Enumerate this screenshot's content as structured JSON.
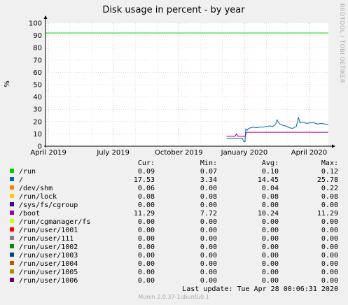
{
  "chart_data": {
    "type": "line",
    "title": "Disk usage in percent - by year",
    "ylabel": "%",
    "ylim": [
      0,
      100
    ],
    "yticks": [
      0,
      10,
      20,
      30,
      40,
      50,
      60,
      70,
      80,
      90,
      100
    ],
    "x_range": [
      "2019-03-28",
      "2020-04-28"
    ],
    "x_ticks": [
      {
        "date": "2019-04-01",
        "label": "April 2019"
      },
      {
        "date": "2019-07-01",
        "label": "July 2019"
      },
      {
        "date": "2019-10-01",
        "label": "October 2019"
      },
      {
        "date": "2020-01-01",
        "label": "January 2020"
      },
      {
        "date": "2020-04-01",
        "label": "April 2020"
      }
    ],
    "grid": true,
    "warning_line": {
      "y": 92,
      "color": "#00cc00"
    },
    "series": [
      {
        "name": "/run",
        "color": "#00cc00",
        "points": []
      },
      {
        "name": "/",
        "color": "#0066b3",
        "points": [
          [
            "2019-12-07",
            6.5
          ],
          [
            "2019-12-20",
            6.5
          ],
          [
            "2019-12-29",
            6.5
          ],
          [
            "2019-12-31",
            4
          ],
          [
            "2020-01-02",
            3.5
          ],
          [
            "2020-01-03",
            14
          ],
          [
            "2020-01-05",
            13
          ],
          [
            "2020-01-07",
            14.5
          ],
          [
            "2020-01-10",
            15
          ],
          [
            "2020-01-14",
            15.5
          ],
          [
            "2020-01-18",
            15
          ],
          [
            "2020-01-22",
            15.5
          ],
          [
            "2020-01-27",
            15.5
          ],
          [
            "2020-02-01",
            16
          ],
          [
            "2020-02-06",
            16.5
          ],
          [
            "2020-02-10",
            16
          ],
          [
            "2020-02-14",
            18
          ],
          [
            "2020-02-16",
            21.5
          ],
          [
            "2020-02-18",
            19
          ],
          [
            "2020-02-20",
            18
          ],
          [
            "2020-02-24",
            17
          ],
          [
            "2020-02-28",
            16.5
          ],
          [
            "2020-03-04",
            15
          ],
          [
            "2020-03-09",
            14.5
          ],
          [
            "2020-03-12",
            15.5
          ],
          [
            "2020-03-14",
            16
          ],
          [
            "2020-03-17",
            23.5
          ],
          [
            "2020-03-19",
            19
          ],
          [
            "2020-03-23",
            19.5
          ],
          [
            "2020-03-28",
            18.5
          ],
          [
            "2020-04-03",
            19
          ],
          [
            "2020-04-08",
            19
          ],
          [
            "2020-04-13",
            18
          ],
          [
            "2020-04-18",
            18.5
          ],
          [
            "2020-04-23",
            18
          ],
          [
            "2020-04-28",
            17.5
          ]
        ]
      },
      {
        "name": "/dev/shm",
        "color": "#ff8000",
        "points": []
      },
      {
        "name": "/run/lock",
        "color": "#ffcc00",
        "points": []
      },
      {
        "name": "/sys/fs/cgroup",
        "color": "#330099",
        "points": []
      },
      {
        "name": "/boot",
        "color": "#990099",
        "points": [
          [
            "2019-12-07",
            8
          ],
          [
            "2019-12-19",
            8
          ],
          [
            "2019-12-21",
            10
          ],
          [
            "2019-12-23",
            8
          ],
          [
            "2020-01-02",
            8
          ],
          [
            "2020-01-04",
            11.3
          ],
          [
            "2020-04-28",
            11.3
          ]
        ]
      },
      {
        "name": "/run/cgmanager/fs",
        "color": "#ccff00",
        "points": []
      },
      {
        "name": "/run/user/1001",
        "color": "#ff0000",
        "points": []
      },
      {
        "name": "/run/user/111",
        "color": "#808080",
        "points": []
      },
      {
        "name": "/run/user/1002",
        "color": "#008f00",
        "points": []
      },
      {
        "name": "/run/user/1003",
        "color": "#00487d",
        "points": []
      },
      {
        "name": "/run/user/1004",
        "color": "#b35a00",
        "points": []
      },
      {
        "name": "/run/user/1005",
        "color": "#b38f00",
        "points": []
      },
      {
        "name": "/run/user/1006",
        "color": "#6b006b",
        "points": []
      }
    ]
  },
  "legend": {
    "headers": {
      "cur": "Cur:",
      "min": "Min:",
      "avg": "Avg:",
      "max": "Max:"
    },
    "rows": [
      {
        "name": "/run",
        "color": "#00cc00",
        "cur": "0.09",
        "min": "0.07",
        "avg": "0.10",
        "max": "0.12"
      },
      {
        "name": "/",
        "color": "#0066b3",
        "cur": "17.53",
        "min": "3.34",
        "avg": "14.45",
        "max": "25.78"
      },
      {
        "name": "/dev/shm",
        "color": "#ff8000",
        "cur": "0.06",
        "min": "0.00",
        "avg": "0.04",
        "max": "0.22"
      },
      {
        "name": "/run/lock",
        "color": "#ffcc00",
        "cur": "0.08",
        "min": "0.08",
        "avg": "0.08",
        "max": "0.08"
      },
      {
        "name": "/sys/fs/cgroup",
        "color": "#330099",
        "cur": "0.00",
        "min": "0.00",
        "avg": "0.00",
        "max": "0.00"
      },
      {
        "name": "/boot",
        "color": "#990099",
        "cur": "11.29",
        "min": "7.72",
        "avg": "10.24",
        "max": "11.29"
      },
      {
        "name": "/run/cgmanager/fs",
        "color": "#ccff00",
        "cur": "0.00",
        "min": "0.00",
        "avg": "0.00",
        "max": "0.00"
      },
      {
        "name": "/run/user/1001",
        "color": "#ff0000",
        "cur": "0.00",
        "min": "0.00",
        "avg": "0.00",
        "max": "0.00"
      },
      {
        "name": "/run/user/111",
        "color": "#808080",
        "cur": "0.00",
        "min": "0.00",
        "avg": "0.00",
        "max": "0.00"
      },
      {
        "name": "/run/user/1002",
        "color": "#008f00",
        "cur": "0.00",
        "min": "0.00",
        "avg": "0.00",
        "max": "0.00"
      },
      {
        "name": "/run/user/1003",
        "color": "#00487d",
        "cur": "0.00",
        "min": "0.00",
        "avg": "0.00",
        "max": "0.00"
      },
      {
        "name": "/run/user/1004",
        "color": "#b35a00",
        "cur": "0.00",
        "min": "0.00",
        "avg": "0.00",
        "max": "0.00"
      },
      {
        "name": "/run/user/1005",
        "color": "#b38f00",
        "cur": "0.00",
        "min": "0.00",
        "avg": "0.00",
        "max": "0.00"
      },
      {
        "name": "/run/user/1006",
        "color": "#6b006b",
        "cur": "0.00",
        "min": "0.00",
        "avg": "0.00",
        "max": "0.00"
      }
    ]
  },
  "last_update": "Last update: Tue Apr 28 00:06:31 2020",
  "side_label": "RRDTOOL / TOBI OETIKER",
  "footer": "Munin 2.0.37-1ubuntu0.1"
}
